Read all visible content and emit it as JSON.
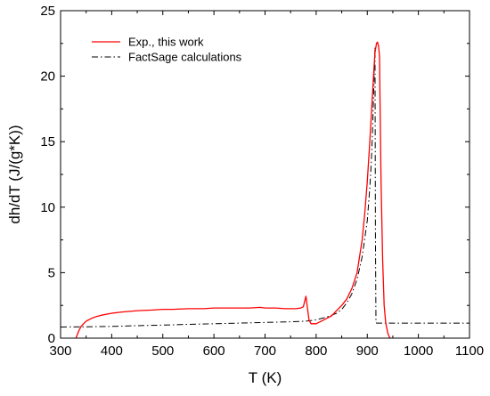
{
  "chart_data": {
    "type": "line",
    "title": "",
    "xlabel": "T (K)",
    "ylabel": "dh/dT (J/(g*K))",
    "xlim": [
      300,
      1100
    ],
    "ylim": [
      0,
      25
    ],
    "x_ticks": [
      300,
      400,
      500,
      600,
      700,
      800,
      900,
      1000,
      1100
    ],
    "y_ticks": [
      0,
      5,
      10,
      15,
      20,
      25
    ],
    "grid": false,
    "legend_position": "top-left",
    "series": [
      {
        "name": "Exp., this work",
        "color": "#ff0000",
        "style": "solid",
        "x": [
          330,
          332,
          335,
          340,
          345,
          350,
          360,
          370,
          380,
          400,
          420,
          450,
          480,
          500,
          520,
          550,
          580,
          600,
          620,
          650,
          670,
          690,
          700,
          720,
          740,
          760,
          770,
          775,
          778,
          780,
          783,
          786,
          790,
          800,
          810,
          820,
          830,
          840,
          850,
          860,
          870,
          880,
          890,
          895,
          900,
          905,
          910,
          913,
          915,
          918,
          920,
          922,
          924,
          925,
          927,
          930,
          933,
          936,
          940,
          943,
          945
        ],
        "y": [
          0.0,
          0.2,
          0.5,
          0.9,
          1.1,
          1.3,
          1.5,
          1.65,
          1.75,
          1.9,
          2.0,
          2.1,
          2.15,
          2.2,
          2.2,
          2.25,
          2.25,
          2.3,
          2.3,
          2.3,
          2.3,
          2.35,
          2.3,
          2.3,
          2.25,
          2.25,
          2.3,
          2.4,
          2.9,
          3.2,
          2.3,
          1.4,
          1.1,
          1.1,
          1.3,
          1.5,
          1.7,
          2.1,
          2.5,
          3.0,
          3.8,
          5.0,
          7.5,
          9.5,
          12.0,
          15.0,
          18.5,
          20.5,
          21.8,
          22.5,
          22.6,
          22.3,
          21.5,
          18.0,
          12.0,
          6.0,
          2.5,
          1.2,
          0.4,
          0.1,
          0.0
        ]
      },
      {
        "name": "FactSage calculations",
        "color": "#000000",
        "style": "dash-dot",
        "x": [
          300,
          350,
          400,
          450,
          500,
          550,
          600,
          650,
          700,
          750,
          780,
          800,
          820,
          840,
          850,
          860,
          870,
          880,
          890,
          900,
          905,
          908,
          910,
          912,
          914,
          915,
          916,
          917,
          918,
          950,
          1000,
          1050,
          1100
        ],
        "y": [
          0.85,
          0.87,
          0.9,
          0.95,
          1.0,
          1.05,
          1.1,
          1.15,
          1.2,
          1.25,
          1.3,
          1.4,
          1.6,
          1.9,
          2.2,
          2.7,
          3.4,
          4.5,
          6.2,
          9.0,
          11.5,
          13.5,
          15.5,
          18.0,
          21.0,
          22.2,
          8.0,
          1.2,
          1.15,
          1.15,
          1.15,
          1.15,
          1.15
        ]
      }
    ]
  }
}
